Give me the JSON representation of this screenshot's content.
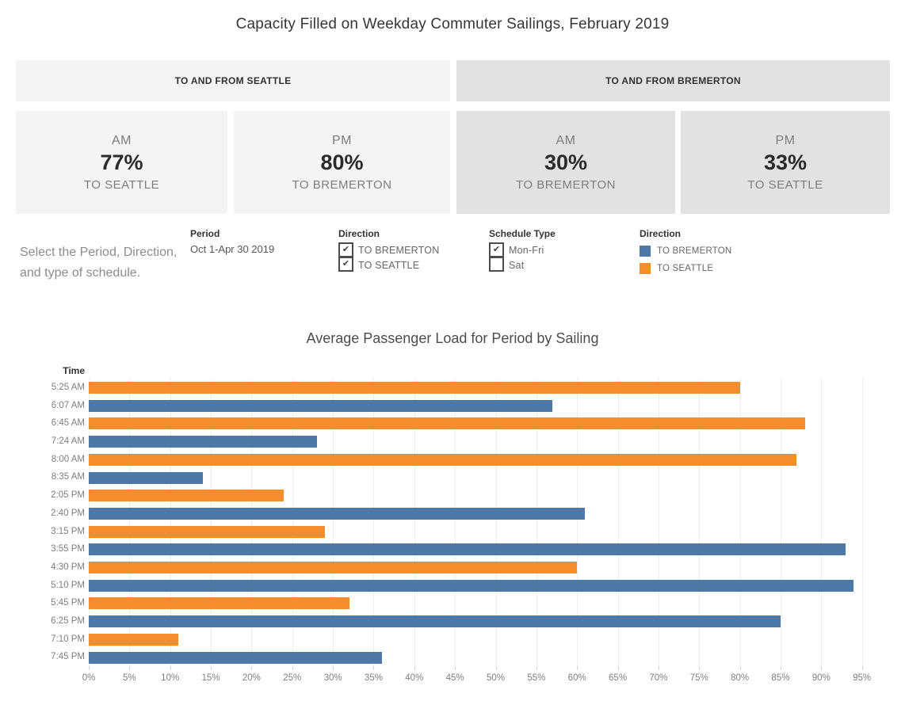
{
  "page": {
    "title": "Capacity Filled on Weekday Commuter Sailings, February 2019"
  },
  "region_headers": [
    {
      "label": "TO AND FROM SEATTLE"
    },
    {
      "label": "TO AND FROM BREMERTON"
    }
  ],
  "kpi_cards": [
    {
      "period": "AM",
      "value": "77%",
      "direction": "TO SEATTLE"
    },
    {
      "period": "PM",
      "value": "80%",
      "direction": "TO BREMERTON"
    },
    {
      "period": "AM",
      "value": "30%",
      "direction": "TO BREMERTON"
    },
    {
      "period": "PM",
      "value": "33%",
      "direction": "TO SEATTLE"
    }
  ],
  "filters": {
    "note": "Select the Period, Direction, and type of schedule.",
    "period": {
      "label": "Period",
      "value": "Oct 1-Apr 30 2019"
    },
    "direction_filter": {
      "label": "Direction",
      "options": [
        {
          "label": "TO BREMERTON",
          "checked": true
        },
        {
          "label": "TO SEATTLE",
          "checked": true
        }
      ]
    },
    "schedule_type": {
      "label": "Schedule Type",
      "options": [
        {
          "label": "Mon-Fri",
          "checked": true
        },
        {
          "label": "Sat",
          "checked": false
        }
      ]
    },
    "legend": {
      "label": "Direction",
      "items": [
        {
          "label": "TO BREMERTON",
          "color": "#4e79a7"
        },
        {
          "label": "TO SEATTLE",
          "color": "#f28e2b"
        }
      ]
    }
  },
  "chart_data": {
    "type": "bar",
    "orientation": "horizontal",
    "title": "Average Passenger Load for Period by Sailing",
    "ylabel": "Time",
    "xlabel": "",
    "xlim": [
      0,
      98.5
    ],
    "x_tick_step": 5,
    "x_tick_max": 95,
    "grid": true,
    "colors": {
      "TO BREMERTON": "#4e79a7",
      "TO SEATTLE": "#f28e2b"
    },
    "rows": [
      {
        "time": "5:25 AM",
        "direction": "TO SEATTLE",
        "value": 80
      },
      {
        "time": "6:07 AM",
        "direction": "TO BREMERTON",
        "value": 57
      },
      {
        "time": "6:45 AM",
        "direction": "TO SEATTLE",
        "value": 88
      },
      {
        "time": "7:24 AM",
        "direction": "TO BREMERTON",
        "value": 28
      },
      {
        "time": "8:00 AM",
        "direction": "TO SEATTLE",
        "value": 87
      },
      {
        "time": "8:35 AM",
        "direction": "TO BREMERTON",
        "value": 14
      },
      {
        "time": "2:05 PM",
        "direction": "TO SEATTLE",
        "value": 24
      },
      {
        "time": "2:40 PM",
        "direction": "TO BREMERTON",
        "value": 61
      },
      {
        "time": "3:15 PM",
        "direction": "TO SEATTLE",
        "value": 29
      },
      {
        "time": "3:55 PM",
        "direction": "TO BREMERTON",
        "value": 93
      },
      {
        "time": "4:30 PM",
        "direction": "TO SEATTLE",
        "value": 60
      },
      {
        "time": "5:10 PM",
        "direction": "TO BREMERTON",
        "value": 94
      },
      {
        "time": "5:45 PM",
        "direction": "TO SEATTLE",
        "value": 32
      },
      {
        "time": "6:25 PM",
        "direction": "TO BREMERTON",
        "value": 85
      },
      {
        "time": "7:10 PM",
        "direction": "TO SEATTLE",
        "value": 11
      },
      {
        "time": "7:45 PM",
        "direction": "TO BREMERTON",
        "value": 36
      }
    ]
  }
}
